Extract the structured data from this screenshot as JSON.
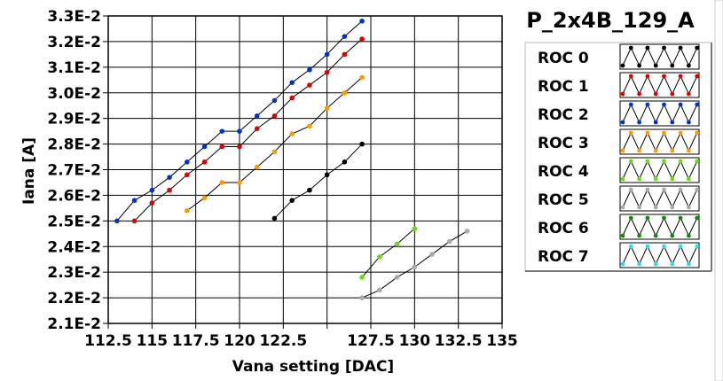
{
  "chart_data": {
    "type": "line",
    "title": "P_2x4B_129_A",
    "xlabel": "Vana setting [DAC]",
    "ylabel": "Iana [A]",
    "xlim": [
      112.5,
      135
    ],
    "ylim": [
      0.021,
      0.033
    ],
    "xticks": [
      112.5,
      115,
      117.5,
      120,
      122.5,
      125,
      127.5,
      130,
      132.5,
      135
    ],
    "xtick_labels": [
      "112.5",
      "115",
      "117.5",
      "120",
      "122.5",
      "",
      "127.5",
      "130",
      "132.5",
      "135"
    ],
    "yticks": [
      0.021,
      0.022,
      0.023,
      0.024,
      0.025,
      0.026,
      0.027,
      0.028,
      0.029,
      0.03,
      0.031,
      0.032,
      0.033
    ],
    "ytick_labels": [
      "2.1E-2",
      "2.2E-2",
      "2.3E-2",
      "2.4E-2",
      "2.5E-2",
      "2.6E-2",
      "2.7E-2",
      "2.8E-2",
      "2.9E-2",
      "3.0E-2",
      "3.1E-2",
      "3.2E-2",
      "3.3E-2"
    ],
    "grid": true,
    "legend_position": "right",
    "series": [
      {
        "name": "ROC 0",
        "color": "#000000",
        "x": [
          122,
          123,
          124,
          125,
          126,
          127
        ],
        "y": [
          0.0251,
          0.0258,
          0.0262,
          0.0268,
          0.0273,
          0.028
        ]
      },
      {
        "name": "ROC 1",
        "color": "#dd0000",
        "x": [
          114,
          115,
          116,
          117,
          118,
          119,
          120,
          121,
          122,
          123,
          124,
          125,
          126,
          127
        ],
        "y": [
          0.025,
          0.0257,
          0.0262,
          0.0268,
          0.0273,
          0.0279,
          0.0279,
          0.0286,
          0.0291,
          0.0298,
          0.0303,
          0.0308,
          0.0315,
          0.0321
        ]
      },
      {
        "name": "ROC 2",
        "color": "#0033cc",
        "x": [
          113,
          114,
          115,
          116,
          117,
          118,
          119,
          120,
          121,
          122,
          123,
          124,
          125,
          126,
          127
        ],
        "y": [
          0.025,
          0.0258,
          0.0262,
          0.0267,
          0.0273,
          0.0279,
          0.0285,
          0.0285,
          0.0291,
          0.0297,
          0.0304,
          0.0309,
          0.0315,
          0.0322,
          0.0328
        ]
      },
      {
        "name": "ROC 3",
        "color": "#ff9900",
        "x": [
          117,
          118,
          119,
          120,
          121,
          122,
          123,
          124,
          125,
          126,
          127
        ],
        "y": [
          0.0254,
          0.0259,
          0.0265,
          0.0265,
          0.0271,
          0.0277,
          0.0284,
          0.0287,
          0.0294,
          0.03,
          0.0306
        ]
      },
      {
        "name": "ROC 4",
        "color": "#66dd11",
        "x": [
          127,
          128,
          129,
          130
        ],
        "y": [
          0.0228,
          0.0236,
          0.0241,
          0.0247
        ]
      },
      {
        "name": "ROC 5",
        "color": "#aaaaaa",
        "x": [
          127,
          128,
          129,
          130,
          131,
          132,
          133
        ],
        "y": [
          0.022,
          0.0223,
          0.0228,
          0.0232,
          0.0237,
          0.0242,
          0.0246
        ]
      },
      {
        "name": "ROC 6",
        "color": "#118811",
        "x": [],
        "y": []
      },
      {
        "name": "ROC 7",
        "color": "#33dddd",
        "x": [],
        "y": []
      }
    ]
  }
}
